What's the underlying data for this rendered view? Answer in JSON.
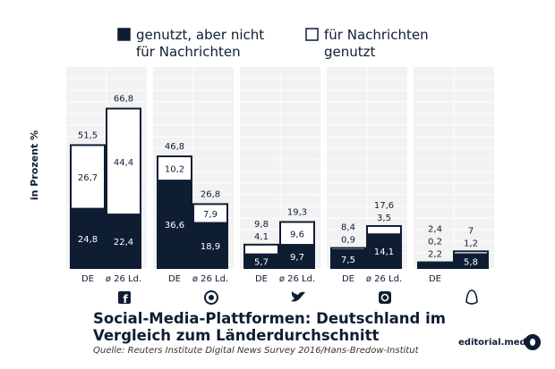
{
  "chart_data": {
    "type": "bar",
    "stacked": true,
    "ylabel": "in Prozent %",
    "legend": [
      {
        "label_lines": [
          "genutzt, aber nicht",
          "für Nachrichten"
        ],
        "color": "#0f1d33",
        "fill": "dark"
      },
      {
        "label_lines": [
          "für Nachrichten",
          "genutzt"
        ],
        "color": "#ffffff",
        "fill": "light"
      }
    ],
    "platforms": [
      {
        "icon": "facebook-icon",
        "bars": [
          {
            "label": "DE",
            "bottom": "24,8",
            "top": "26,7",
            "total": "51,5",
            "bottom_value": 24.8,
            "top_value": 26.7,
            "total_value": 51.5
          },
          {
            "label": "ø 26 Ld.",
            "bottom": "22,4",
            "top": "44,4",
            "total": "66,8",
            "bottom_value": 22.4,
            "top_value": 44.4,
            "total_value": 66.8
          }
        ]
      },
      {
        "icon": "whatsapp-icon",
        "bars": [
          {
            "label": "DE",
            "bottom": "36,6",
            "top": "10,2",
            "total": "46,8",
            "bottom_value": 36.6,
            "top_value": 10.2,
            "total_value": 46.8
          },
          {
            "label": "ø 26 Ld.",
            "bottom": "18,9",
            "top": "7,9",
            "total": "26,8",
            "bottom_value": 18.9,
            "top_value": 7.9,
            "total_value": 26.8
          }
        ]
      },
      {
        "icon": "twitter-icon",
        "bars": [
          {
            "label": "DE",
            "bottom": "5,7",
            "top": "4,1",
            "total": "9,8",
            "bottom_value": 5.7,
            "top_value": 4.1,
            "total_value": 9.8
          },
          {
            "label": "ø 26 Ld.",
            "bottom": "9,7",
            "top": "9,6",
            "total": "19,3",
            "bottom_value": 9.7,
            "top_value": 9.6,
            "total_value": 19.3
          }
        ]
      },
      {
        "icon": "instagram-icon",
        "bars": [
          {
            "label": "DE",
            "bottom": "7,5",
            "top": "0,9",
            "total": "8,4",
            "bottom_value": 7.5,
            "top_value": 0.9,
            "total_value": 8.4
          },
          {
            "label": "ø 26 Ld.",
            "bottom": "14,1",
            "top": "3,5",
            "total": "17,6",
            "bottom_value": 14.1,
            "top_value": 3.5,
            "total_value": 17.6
          }
        ]
      },
      {
        "icon": "snapchat-icon",
        "bars": [
          {
            "label": "DE",
            "bottom": "2,2",
            "top": "0,2",
            "total": "2,4",
            "bottom_value": 2.2,
            "top_value": 0.2,
            "total_value": 2.4
          },
          {
            "label": "",
            "bottom": "5,8",
            "top": "1,2",
            "total": "7",
            "bottom_value": 5.8,
            "top_value": 1.2,
            "total_value": 7.0
          }
        ]
      }
    ],
    "ylim": [
      0,
      70
    ],
    "grid": true
  },
  "caption": "Social-Media-Plattformen: Deutschland im Vergleich zum Länderdurchschnitt",
  "source": "Quelle: Reuters Institute Digital News Survey 2016/Hans-Bredow-Institut",
  "brand": "editorial.media",
  "colors": {
    "dark": "#0f1d33",
    "light": "#ffffff",
    "panel": "#f2f2f2",
    "grid": "#ffffff"
  }
}
